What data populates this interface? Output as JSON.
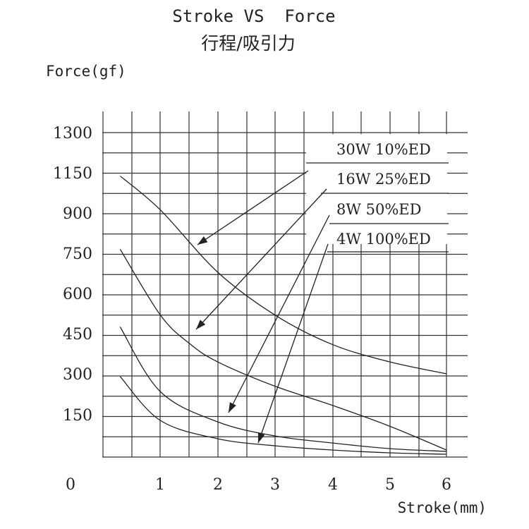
{
  "chart_data": {
    "type": "line",
    "title": "Stroke VS  Force",
    "subtitle": "行程/吸引力",
    "xlabel": "Stroke(mm)",
    "ylabel": "Force(gf)",
    "x_ticks": [
      "0",
      "1",
      "2",
      "3",
      "4",
      "5",
      "6"
    ],
    "y_ticks": [
      "150",
      "300",
      "450",
      "600",
      "750",
      "900",
      "1150",
      "1300"
    ],
    "grid": true,
    "series": [
      {
        "name": "30W  10%ED",
        "x": [
          0.3,
          1.0,
          2.0,
          3.0,
          4.0,
          5.0,
          6.0
        ],
        "y": [
          1130,
          920,
          680,
          520,
          410,
          345,
          300
        ]
      },
      {
        "name": "16W  25%ED",
        "x": [
          0.3,
          1.0,
          1.5,
          2.0,
          3.0,
          4.0,
          5.0,
          6.0
        ],
        "y": [
          765,
          520,
          415,
          345,
          255,
          185,
          110,
          25
        ]
      },
      {
        "name": "8W   50%ED",
        "x": [
          0.3,
          1.0,
          2.0,
          3.0,
          4.0,
          5.0,
          6.0
        ],
        "y": [
          475,
          235,
          125,
          75,
          50,
          30,
          20
        ]
      },
      {
        "name": "4W  100%ED",
        "x": [
          0.3,
          1.0,
          2.0,
          3.0,
          4.0,
          5.0,
          6.0
        ],
        "y": [
          290,
          130,
          65,
          40,
          25,
          15,
          10
        ]
      }
    ]
  }
}
